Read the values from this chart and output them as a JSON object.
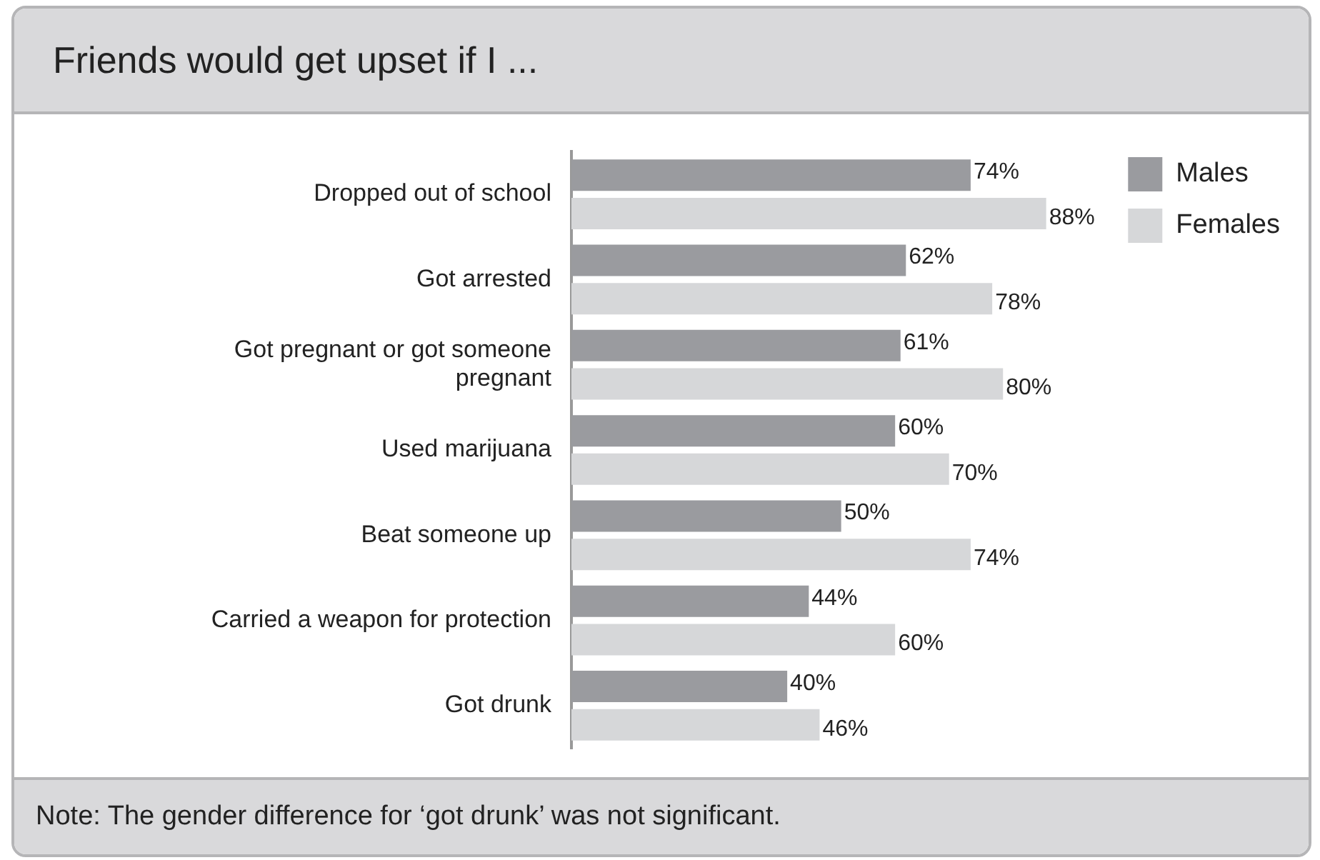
{
  "chart_data": {
    "type": "bar",
    "orientation": "horizontal",
    "title": "Friends would get upset if I ...",
    "categories": [
      "Dropped out of school",
      "Got arrested",
      "Got pregnant or got someone pregnant",
      "Used marijuana",
      "Beat someone up",
      "Carried a weapon for protection",
      "Got drunk"
    ],
    "series": [
      {
        "name": "Males",
        "color": "#9a9b9f",
        "values": [
          74,
          62,
          61,
          60,
          50,
          44,
          40
        ],
        "value_labels": [
          "74%",
          "62%",
          "61%",
          "60%",
          "50%",
          "44%",
          "40%"
        ]
      },
      {
        "name": "Females",
        "color": "#d6d7d9",
        "values": [
          88,
          78,
          80,
          70,
          74,
          60,
          46
        ],
        "value_labels": [
          "88%",
          "78%",
          "80%",
          "70%",
          "74%",
          "60%",
          "46%"
        ]
      }
    ],
    "legend": "top right",
    "grid": false,
    "tick_labels": "y",
    "annotations": [
      "Note: The gender difference for ‘got drunk’ was not significant."
    ]
  }
}
